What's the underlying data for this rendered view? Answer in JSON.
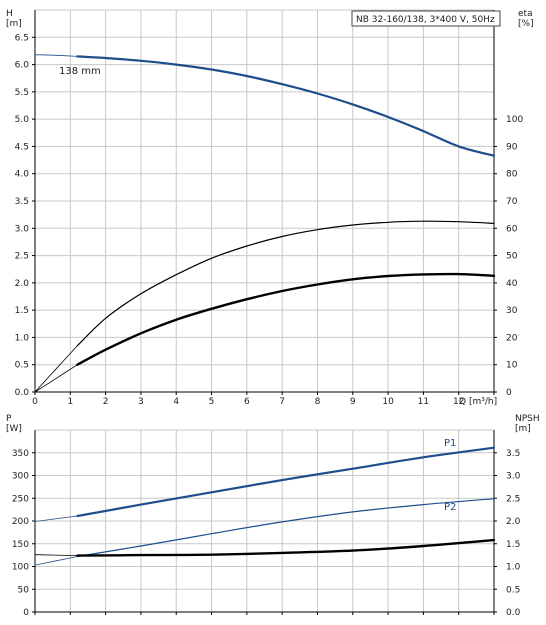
{
  "chart_data": [
    {
      "type": "line",
      "title": "NB 32-160/138, 3*400 V, 50Hz",
      "xlabel": "Q [m³/h]",
      "ylabel_left": "H\n[m]",
      "ylabel_right": "eta\n[%]",
      "xlim": [
        0,
        13
      ],
      "ylim_left": [
        0,
        7
      ],
      "ylim_right": [
        0,
        140
      ],
      "x_ticks": [
        0,
        1,
        2,
        3,
        4,
        5,
        6,
        7,
        8,
        9,
        10,
        11,
        12
      ],
      "y_ticks_left": [
        0.0,
        0.5,
        1.0,
        1.5,
        2.0,
        2.5,
        3.0,
        3.5,
        4.0,
        4.5,
        5.0,
        5.5,
        6.0,
        6.5
      ],
      "y_ticks_right": [
        0,
        10,
        20,
        30,
        40,
        50,
        60,
        70,
        80,
        90,
        100
      ],
      "grid": true,
      "annotation": "138 mm",
      "series": [
        {
          "role": "head",
          "axis": "left",
          "color": "#1f4e8c",
          "x": [
            1.2,
            2,
            3,
            4,
            5,
            6,
            7,
            8,
            9,
            10,
            11,
            12,
            13
          ],
          "y": [
            6.15,
            6.12,
            6.07,
            6.0,
            5.91,
            5.79,
            5.64,
            5.47,
            5.27,
            5.04,
            4.78,
            4.5,
            4.33
          ]
        },
        {
          "role": "head-extension",
          "axis": "left",
          "color": "#1f4e8c",
          "x": [
            0,
            0.6,
            1.2
          ],
          "y": [
            6.18,
            6.17,
            6.15
          ]
        },
        {
          "role": "efficiency-total",
          "axis": "right",
          "color": "#000000",
          "x": [
            1.2,
            2,
            3,
            4,
            5,
            6,
            7,
            8,
            9,
            10,
            11,
            12,
            13
          ],
          "y": [
            17,
            27,
            36,
            43,
            49,
            53.5,
            57,
            59.5,
            61.2,
            62.2,
            62.6,
            62.4,
            61.8
          ]
        },
        {
          "role": "efficiency-total-extension",
          "axis": "right",
          "color": "#000000",
          "x": [
            0,
            0.6,
            1.2
          ],
          "y": [
            0,
            8.5,
            17
          ]
        },
        {
          "role": "efficiency-pump",
          "axis": "right",
          "color": "#000000",
          "x": [
            1.2,
            2,
            3,
            4,
            5,
            6,
            7,
            8,
            9,
            10,
            11,
            12,
            13
          ],
          "y": [
            10,
            15.5,
            21.5,
            26.5,
            30.5,
            34,
            37,
            39.4,
            41.3,
            42.5,
            43.1,
            43.2,
            42.6
          ]
        },
        {
          "role": "efficiency-pump-extension",
          "axis": "right",
          "color": "#000000",
          "x": [
            0,
            0.6,
            1.2
          ],
          "y": [
            0,
            5,
            10
          ]
        }
      ]
    },
    {
      "type": "line",
      "ylabel_left": "P\n[W]",
      "ylabel_right": "NPSH\n[m]",
      "xlim": [
        0,
        13
      ],
      "ylim_left": [
        0,
        400
      ],
      "ylim_right": [
        0,
        4
      ],
      "y_ticks_left": [
        0,
        50,
        100,
        150,
        200,
        250,
        300,
        350
      ],
      "y_ticks_right": [
        0.0,
        0.5,
        1.0,
        1.5,
        2.0,
        2.5,
        3.0,
        3.5
      ],
      "grid": true,
      "series": [
        {
          "name": "P1",
          "axis": "left",
          "color": "#1f4e8c",
          "x": [
            1.2,
            3,
            5,
            7,
            9,
            11,
            13
          ],
          "y": [
            211,
            236,
            263,
            290,
            315,
            340,
            361
          ]
        },
        {
          "role": "p1-extension",
          "axis": "left",
          "color": "#1f4e8c",
          "x": [
            0,
            1.2
          ],
          "y": [
            199,
            211
          ]
        },
        {
          "name": "P2",
          "axis": "left",
          "color": "#1f4e8c",
          "x": [
            1.2,
            3,
            5,
            7,
            9,
            11,
            13
          ],
          "y": [
            122,
            145,
            172,
            198,
            220,
            236,
            249
          ]
        },
        {
          "role": "p2-extension",
          "axis": "left",
          "color": "#1f4e8c",
          "x": [
            0,
            1.2
          ],
          "y": [
            103,
            122
          ]
        },
        {
          "role": "npsh",
          "axis": "right",
          "color": "#000000",
          "x": [
            1.2,
            3,
            5,
            7,
            9,
            11,
            13
          ],
          "y": [
            1.24,
            1.25,
            1.26,
            1.3,
            1.35,
            1.45,
            1.58
          ]
        },
        {
          "role": "npsh-extension",
          "axis": "right",
          "color": "#000000",
          "x": [
            0,
            1.2
          ],
          "y": [
            1.26,
            1.24
          ]
        }
      ]
    }
  ]
}
